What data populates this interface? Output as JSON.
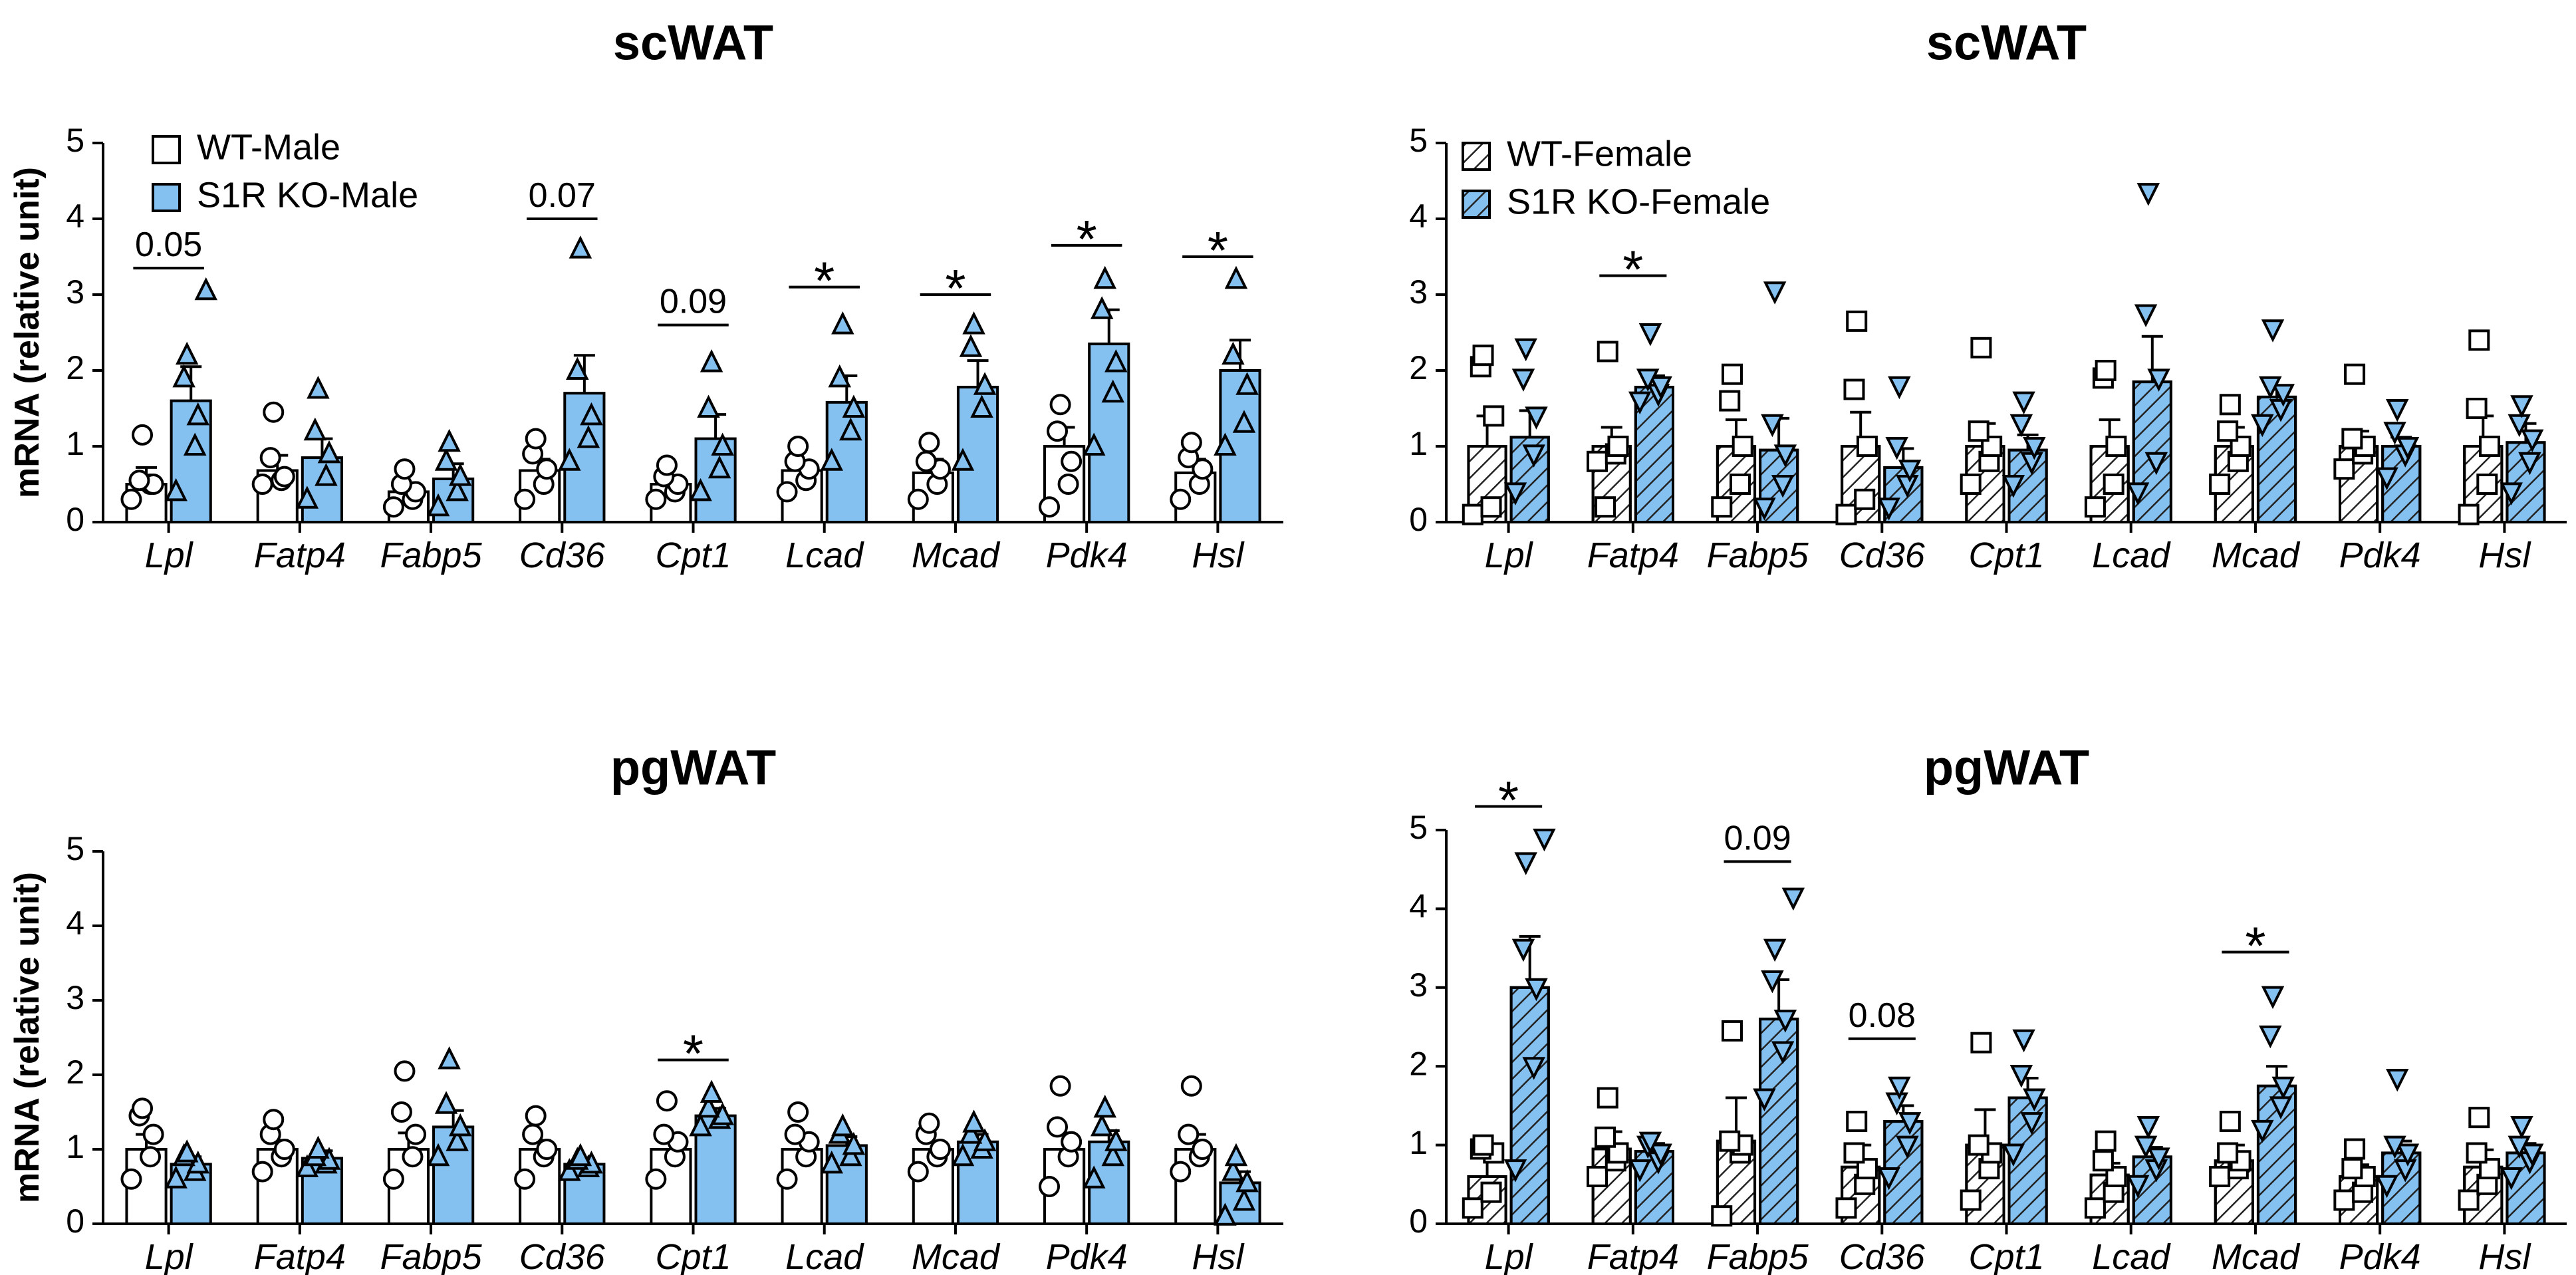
{
  "chart_data": [
    {
      "type": "bar",
      "title": "scWAT",
      "ylabel": "mRNA (relative unit)",
      "xlabel": "",
      "ylim": [
        0,
        5
      ],
      "yticks": [
        "0",
        "1",
        "2",
        "3",
        "4",
        "5"
      ],
      "legend_position": "top-left",
      "categories": [
        "Lpl",
        "Fatp4",
        "Fabp5",
        "Cd36",
        "Cpt1",
        "Lcad",
        "Mcad",
        "Pdk4",
        "Hsl"
      ],
      "series": [
        {
          "name": "WT-Male",
          "fill": "#ffffff",
          "hatched": false,
          "marker": "circle",
          "values": [
            0.5,
            0.68,
            0.4,
            0.68,
            0.5,
            0.68,
            0.65,
            1.0,
            0.65
          ],
          "errors": [
            0.22,
            0.2,
            0.12,
            0.15,
            0.1,
            0.12,
            0.18,
            0.25,
            0.18
          ],
          "points": [
            [
              0.3,
              0.5,
              0.5,
              0.55,
              1.15
            ],
            [
              0.5,
              0.55,
              0.6,
              0.85,
              1.45
            ],
            [
              0.2,
              0.3,
              0.4,
              0.5,
              0.7
            ],
            [
              0.3,
              0.5,
              0.7,
              0.9,
              1.1
            ],
            [
              0.3,
              0.4,
              0.5,
              0.6,
              0.75
            ],
            [
              0.4,
              0.55,
              0.7,
              0.8,
              1.0
            ],
            [
              0.3,
              0.5,
              0.7,
              0.8,
              1.05
            ],
            [
              0.2,
              0.5,
              0.8,
              1.2,
              1.55
            ],
            [
              0.3,
              0.5,
              0.7,
              0.85,
              1.05
            ]
          ]
        },
        {
          "name": "S1R KO-Male",
          "fill": "#85c1f0",
          "hatched": false,
          "marker": "triangle-up",
          "values": [
            1.6,
            0.85,
            0.57,
            1.7,
            1.1,
            1.58,
            1.78,
            2.35,
            2.0
          ],
          "errors": [
            0.45,
            0.25,
            0.2,
            0.5,
            0.32,
            0.35,
            0.35,
            0.45,
            0.4
          ],
          "points": [
            [
              0.4,
              1.0,
              1.4,
              1.9,
              2.2,
              3.05
            ],
            [
              0.3,
              0.6,
              0.9,
              1.2,
              1.75
            ],
            [
              0.2,
              0.4,
              0.6,
              0.8,
              1.05
            ],
            [
              0.8,
              1.1,
              1.4,
              2.0,
              3.6
            ],
            [
              0.4,
              0.7,
              1.0,
              1.5,
              2.1
            ],
            [
              0.8,
              1.2,
              1.5,
              1.9,
              2.6
            ],
            [
              0.8,
              1.5,
              1.8,
              2.3,
              2.6
            ],
            [
              1.0,
              1.7,
              2.1,
              2.8,
              3.2
            ],
            [
              1.0,
              1.3,
              1.8,
              2.2,
              3.2
            ]
          ]
        }
      ],
      "annotations": [
        {
          "category": "Lpl",
          "text": "0.05",
          "kind": "pvalue",
          "y": 3.35
        },
        {
          "category": "Cd36",
          "text": "0.07",
          "kind": "pvalue",
          "y": 4.0
        },
        {
          "category": "Cpt1",
          "text": "0.09",
          "kind": "pvalue",
          "y": 2.6
        },
        {
          "category": "Lcad",
          "text": "*",
          "kind": "significance",
          "y": 3.1
        },
        {
          "category": "Mcad",
          "text": "*",
          "kind": "significance",
          "y": 3.0
        },
        {
          "category": "Pdk4",
          "text": "*",
          "kind": "significance",
          "y": 3.65
        },
        {
          "category": "Hsl",
          "text": "*",
          "kind": "significance",
          "y": 3.5
        }
      ]
    },
    {
      "type": "bar",
      "title": "scWAT",
      "ylabel": "",
      "xlabel": "",
      "ylim": [
        0,
        5
      ],
      "yticks": [
        "0",
        "1",
        "2",
        "3",
        "4",
        "5"
      ],
      "legend_position": "top-left",
      "categories": [
        "Lpl",
        "Fatp4",
        "Fabp5",
        "Cd36",
        "Cpt1",
        "Lcad",
        "Mcad",
        "Pdk4",
        "Hsl"
      ],
      "series": [
        {
          "name": "WT-Female",
          "fill": "#ffffff",
          "hatched": true,
          "marker": "square",
          "values": [
            1.0,
            1.0,
            1.0,
            1.0,
            1.0,
            1.0,
            1.0,
            1.0,
            1.0
          ],
          "errors": [
            0.4,
            0.25,
            0.35,
            0.45,
            0.3,
            0.35,
            0.25,
            0.2,
            0.4
          ],
          "points": [
            [
              0.1,
              0.2,
              1.4,
              2.05,
              2.2
            ],
            [
              0.8,
              0.9,
              1.0,
              0.2,
              2.25
            ],
            [
              0.2,
              0.5,
              1.0,
              1.6,
              1.95
            ],
            [
              0.1,
              0.3,
              1.0,
              1.75,
              2.65
            ],
            [
              0.5,
              0.8,
              1.0,
              1.2,
              2.3
            ],
            [
              0.2,
              0.5,
              1.0,
              1.9,
              2.0
            ],
            [
              0.5,
              0.8,
              1.0,
              1.2,
              1.55
            ],
            [
              0.7,
              0.9,
              1.0,
              1.1,
              1.95
            ],
            [
              0.1,
              0.5,
              1.0,
              1.5,
              2.4
            ]
          ]
        },
        {
          "name": "S1R KO-Female",
          "fill": "#85c1f0",
          "hatched": true,
          "marker": "triangle-down",
          "values": [
            1.12,
            1.78,
            0.95,
            0.72,
            0.95,
            1.85,
            1.65,
            1.0,
            1.05
          ],
          "errors": [
            0.35,
            0.15,
            0.42,
            0.25,
            0.2,
            0.6,
            0.15,
            0.12,
            0.25
          ],
          "points": [
            [
              0.4,
              0.9,
              1.4,
              1.9,
              2.3
            ],
            [
              1.6,
              1.7,
              1.8,
              1.9,
              2.5
            ],
            [
              0.2,
              0.5,
              0.9,
              1.3,
              3.05
            ],
            [
              0.2,
              0.5,
              0.7,
              1.0,
              1.8
            ],
            [
              0.5,
              0.8,
              1.0,
              1.3,
              1.6
            ],
            [
              0.4,
              0.8,
              1.9,
              2.75,
              4.35
            ],
            [
              1.3,
              1.5,
              1.7,
              1.8,
              2.55
            ],
            [
              0.6,
              0.9,
              1.0,
              1.2,
              1.5
            ],
            [
              0.4,
              0.8,
              1.1,
              1.3,
              1.55
            ]
          ]
        }
      ],
      "annotations": [
        {
          "category": "Fatp4",
          "text": "*",
          "kind": "significance",
          "y": 3.25
        }
      ]
    },
    {
      "type": "bar",
      "title": "pgWAT",
      "ylabel": "mRNA (relative unit)",
      "xlabel": "",
      "ylim": [
        0,
        5
      ],
      "yticks": [
        "0",
        "1",
        "2",
        "3",
        "4",
        "5"
      ],
      "categories": [
        "Lpl",
        "Fatp4",
        "Fabp5",
        "Cd36",
        "Cpt1",
        "Lcad",
        "Mcad",
        "Pdk4",
        "Hsl"
      ],
      "series": [
        {
          "name": "WT-Male",
          "fill": "#ffffff",
          "hatched": false,
          "marker": "circle",
          "values": [
            1.0,
            1.0,
            1.0,
            1.0,
            1.0,
            1.0,
            1.0,
            1.0,
            1.0
          ],
          "errors": [
            0.2,
            0.12,
            0.22,
            0.12,
            0.15,
            0.12,
            0.1,
            0.22,
            0.2
          ],
          "points": [
            [
              0.6,
              0.9,
              1.2,
              1.45,
              1.55
            ],
            [
              0.7,
              0.9,
              1.0,
              1.2,
              1.4
            ],
            [
              0.6,
              0.9,
              1.2,
              1.5,
              2.05
            ],
            [
              0.6,
              0.9,
              1.0,
              1.2,
              1.45
            ],
            [
              0.6,
              0.9,
              1.1,
              1.2,
              1.65
            ],
            [
              0.6,
              0.9,
              1.1,
              1.2,
              1.5
            ],
            [
              0.7,
              0.9,
              1.0,
              1.2,
              1.35
            ],
            [
              0.5,
              0.9,
              1.1,
              1.3,
              1.85
            ],
            [
              0.7,
              0.9,
              1.0,
              1.2,
              1.85
            ]
          ]
        },
        {
          "name": "S1R KO-Male",
          "fill": "#85c1f0",
          "hatched": false,
          "marker": "triangle-up",
          "values": [
            0.8,
            0.88,
            1.3,
            0.8,
            1.45,
            1.05,
            1.1,
            1.1,
            0.55
          ],
          "errors": [
            0.1,
            0.1,
            0.22,
            0.08,
            0.1,
            0.12,
            0.1,
            0.15,
            0.15
          ],
          "points": [
            [
              0.6,
              0.7,
              0.8,
              0.9,
              0.95
            ],
            [
              0.75,
              0.8,
              0.85,
              0.9,
              1.0
            ],
            [
              0.9,
              1.1,
              1.3,
              1.6,
              2.2
            ],
            [
              0.7,
              0.75,
              0.8,
              0.85,
              0.9
            ],
            [
              1.3,
              1.4,
              1.45,
              1.55,
              1.75
            ],
            [
              0.8,
              0.9,
              1.05,
              1.2,
              1.3
            ],
            [
              0.9,
              1.0,
              1.1,
              1.2,
              1.35
            ],
            [
              0.6,
              0.9,
              1.1,
              1.3,
              1.55
            ],
            [
              0.1,
              0.3,
              0.55,
              0.7,
              0.9
            ]
          ]
        }
      ],
      "annotations": [
        {
          "category": "Cpt1",
          "text": "*",
          "kind": "significance",
          "y": 2.2
        }
      ]
    },
    {
      "type": "bar",
      "title": "pgWAT",
      "ylabel": "",
      "xlabel": "",
      "ylim": [
        0,
        5
      ],
      "yticks": [
        "0",
        "1",
        "2",
        "3",
        "4",
        "5"
      ],
      "categories": [
        "Lpl",
        "Fatp4",
        "Fabp5",
        "Cd36",
        "Cpt1",
        "Lcad",
        "Mcad",
        "Pdk4",
        "Hsl"
      ],
      "series": [
        {
          "name": "WT-Female",
          "fill": "#ffffff",
          "hatched": true,
          "marker": "square",
          "values": [
            0.6,
            0.95,
            1.05,
            0.72,
            1.0,
            0.62,
            0.8,
            0.6,
            0.72
          ],
          "errors": [
            0.4,
            0.22,
            0.55,
            0.28,
            0.45,
            0.15,
            0.2,
            0.15,
            0.22
          ],
          "points": [
            [
              0.2,
              0.4,
              0.9,
              0.95,
              1.0
            ],
            [
              0.6,
              0.8,
              0.9,
              1.1,
              1.6
            ],
            [
              0.1,
              0.9,
              1.0,
              1.05,
              2.45
            ],
            [
              0.2,
              0.5,
              0.7,
              0.9,
              1.3
            ],
            [
              0.3,
              0.7,
              0.9,
              1.0,
              2.3
            ],
            [
              0.2,
              0.4,
              0.6,
              0.8,
              1.05
            ],
            [
              0.6,
              0.7,
              0.8,
              0.9,
              1.3
            ],
            [
              0.3,
              0.4,
              0.6,
              0.7,
              0.95
            ],
            [
              0.3,
              0.5,
              0.7,
              0.9,
              1.35
            ]
          ]
        },
        {
          "name": "S1R KO-Female",
          "fill": "#85c1f0",
          "hatched": true,
          "marker": "triangle-down",
          "values": [
            3.0,
            0.92,
            2.6,
            1.3,
            1.6,
            0.85,
            1.75,
            0.9,
            0.9
          ],
          "errors": [
            0.65,
            0.1,
            0.5,
            0.2,
            0.25,
            0.12,
            0.25,
            0.15,
            0.12
          ],
          "points": [
            [
              0.7,
              2.0,
              3.0,
              3.5,
              4.6,
              4.9
            ],
            [
              0.7,
              0.8,
              0.9,
              1.0,
              1.05
            ],
            [
              1.6,
              2.2,
              2.6,
              3.1,
              3.5,
              4.15
            ],
            [
              0.6,
              1.0,
              1.3,
              1.55,
              1.75
            ],
            [
              0.9,
              1.3,
              1.6,
              1.9,
              2.35
            ],
            [
              0.5,
              0.7,
              0.85,
              1.0,
              1.25
            ],
            [
              1.2,
              1.5,
              1.75,
              2.4,
              2.9
            ],
            [
              0.5,
              0.7,
              0.9,
              1.0,
              1.85
            ],
            [
              0.6,
              0.8,
              0.9,
              1.0,
              1.25
            ]
          ]
        }
      ],
      "annotations": [
        {
          "category": "Lpl",
          "text": "*",
          "kind": "significance",
          "y": 5.3
        },
        {
          "category": "Fabp5",
          "text": "0.09",
          "kind": "pvalue",
          "y": 4.6
        },
        {
          "category": "Cd36",
          "text": "0.08",
          "kind": "pvalue",
          "y": 2.35
        },
        {
          "category": "Mcad",
          "text": "*",
          "kind": "significance",
          "y": 3.45
        }
      ]
    }
  ]
}
